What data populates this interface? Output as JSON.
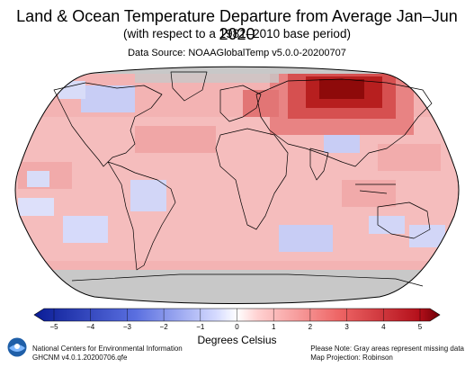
{
  "title": "Land & Ocean Temperature Departure from Average Jan–Jun 2020",
  "subtitle": "(with respect to a 1981–2010 base period)",
  "source": "Data Source: NOAAGlobalTemp v5.0.0-20200707",
  "legend": {
    "title": "Degrees Celsius",
    "ticks": [
      "−5",
      "−4",
      "−3",
      "−2",
      "−1",
      "0",
      "1",
      "2",
      "3",
      "4",
      "5"
    ],
    "min_color": "#0a1c96",
    "zero_color": "#ffffff",
    "max_color": "#6e0008"
  },
  "footer": {
    "org": "National Centers for Environmental Information",
    "version": "GHCNM v4.0.1.20200706.qfe",
    "note": "Please Note: Gray areas represent missing data",
    "projection": "Map Projection: Robinson"
  },
  "map": {
    "missing_color": "#c8c8c8",
    "projection": "Robinson",
    "anomaly_overall": "mostly above average"
  }
}
